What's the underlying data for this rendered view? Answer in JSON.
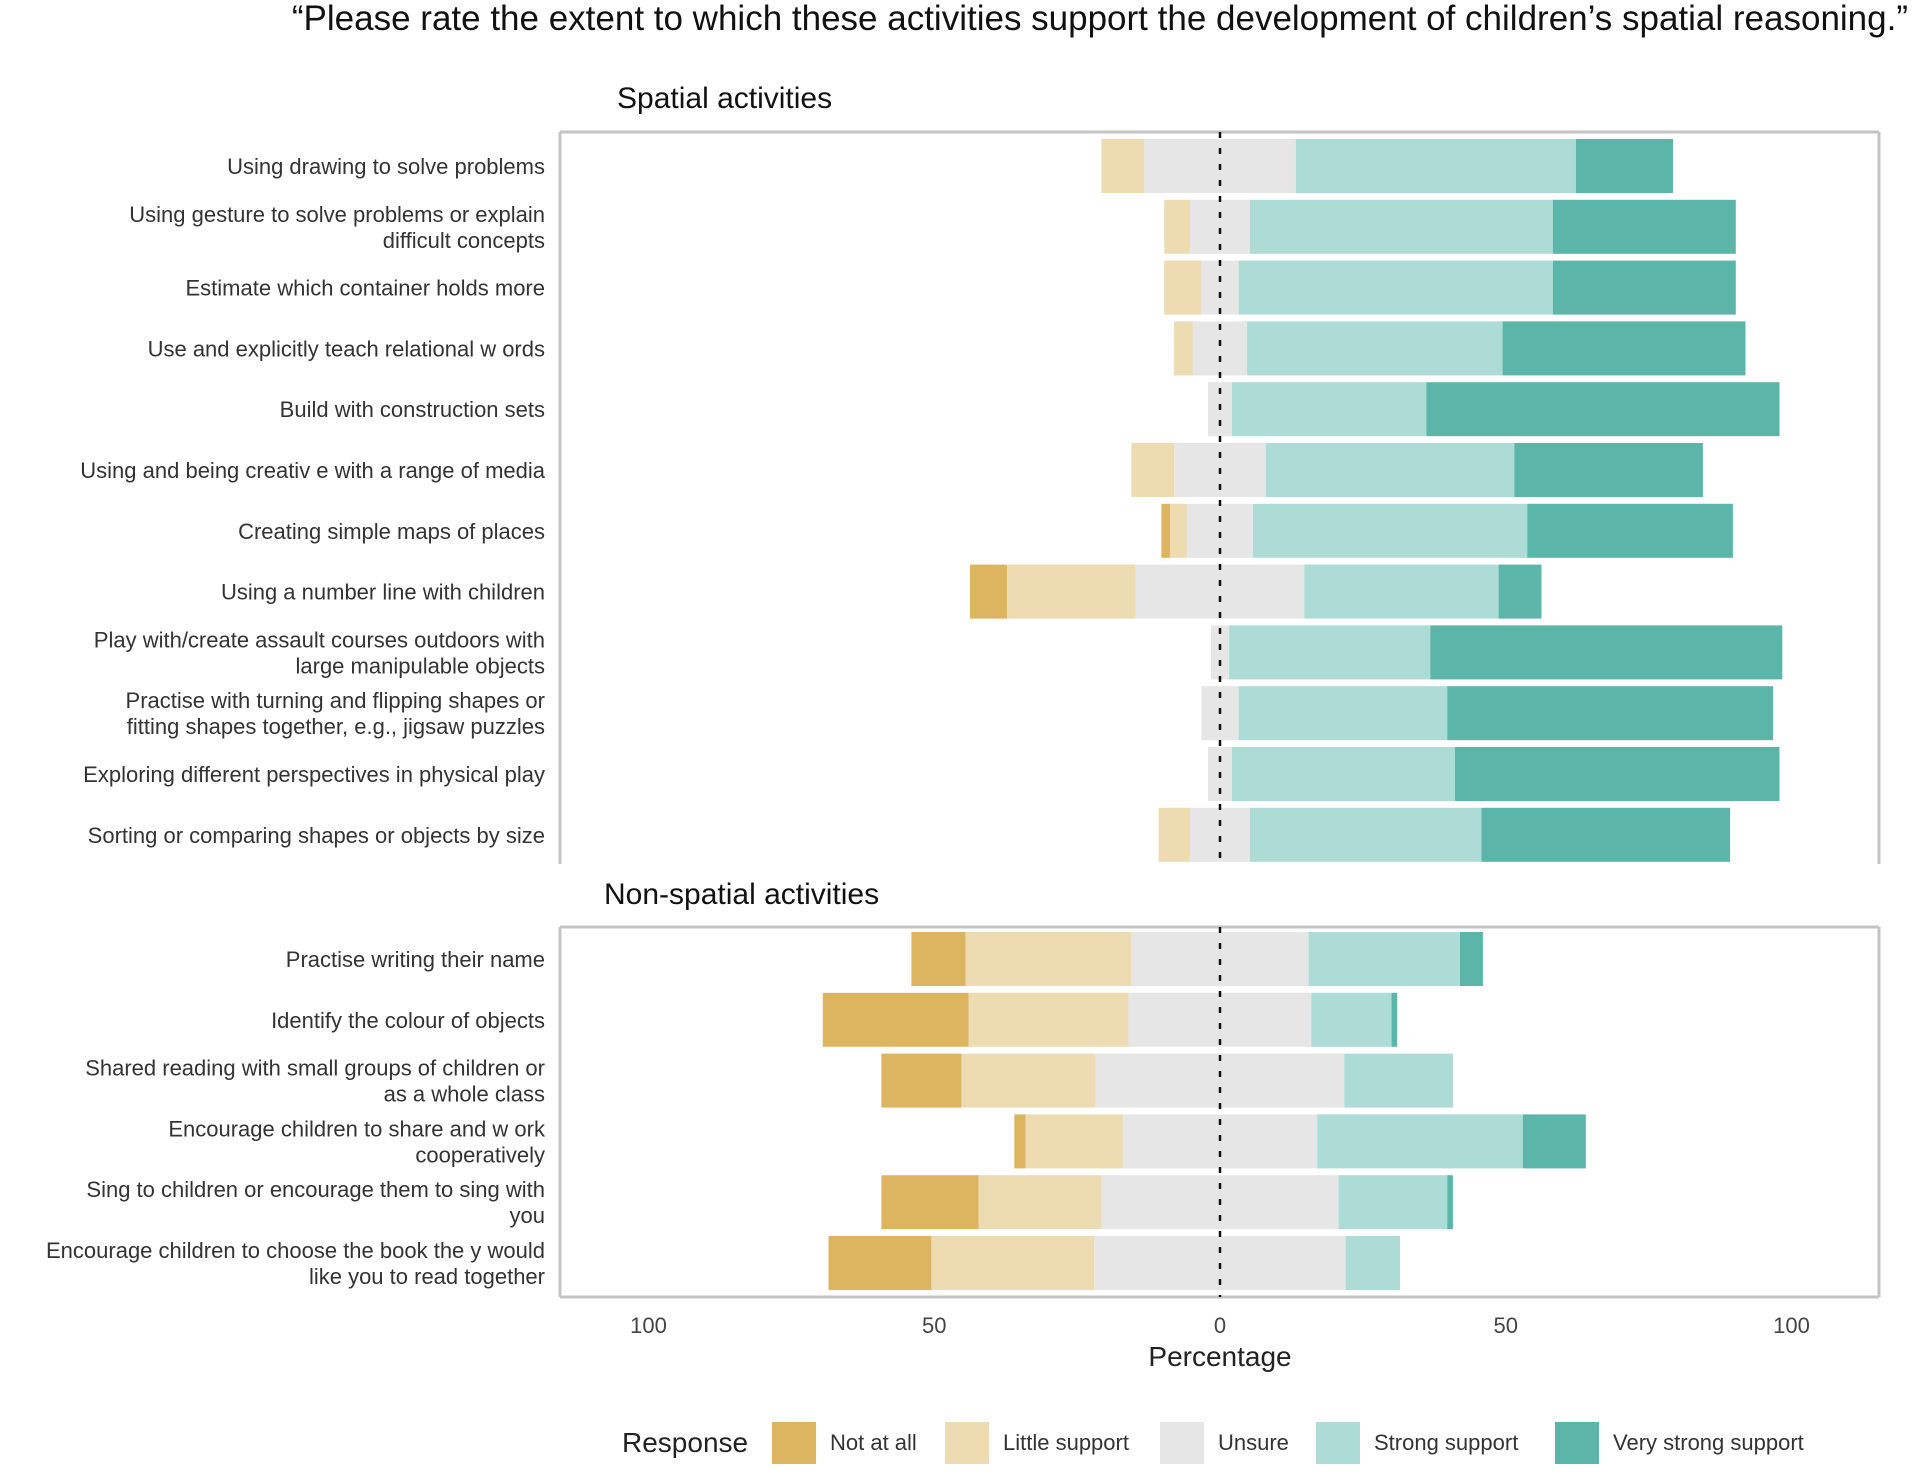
{
  "chart_data": {
    "type": "diverging-stacked-bar",
    "title": "“Please rate the extent to which these activities support the development of children’s spatial reasoning.”",
    "xlabel": "Percentage",
    "xlim": [
      -115,
      115
    ],
    "x_ticks": [
      {
        "value": -100,
        "label": "100"
      },
      {
        "value": -50,
        "label": "50"
      },
      {
        "value": 0,
        "label": "0"
      },
      {
        "value": 50,
        "label": "50"
      },
      {
        "value": 100,
        "label": "100"
      }
    ],
    "legend": {
      "title": "Response",
      "position": "bottom",
      "entries": [
        {
          "name": "Not at all",
          "color": "#DDB561"
        },
        {
          "name": "Little support",
          "color": "#EDDBB2"
        },
        {
          "name": "Unsure",
          "color": "#E6E6E6"
        },
        {
          "name": "Strong support",
          "color": "#ADDBD6"
        },
        {
          "name": "Very strong support",
          "color": "#5BB6A9"
        }
      ]
    },
    "panels": [
      {
        "title": "Spatial activities",
        "rows": [
          {
            "label": [
              "Using drawing to solve problems"
            ],
            "values": [
              0,
              7.5,
              26.5,
              49,
              17
            ]
          },
          {
            "label": [
              "Using gesture to solve problems or explain",
              "difficult concepts"
            ],
            "values": [
              0,
              4.5,
              10.5,
              53,
              32
            ]
          },
          {
            "label": [
              "Estimate which container holds more"
            ],
            "values": [
              0,
              6.5,
              6.5,
              55,
              32
            ]
          },
          {
            "label": [
              "Use and explicitly teach relational w ords"
            ],
            "values": [
              0,
              3.3,
              9.5,
              44.7,
              42.5
            ]
          },
          {
            "label": [
              "Build with construction sets"
            ],
            "values": [
              0,
              0,
              4.2,
              34,
              61.8
            ]
          },
          {
            "label": [
              "Using and being creativ e with a range of media"
            ],
            "values": [
              0,
              7.5,
              16,
              43.5,
              33
            ]
          },
          {
            "label": [
              "Creating simple maps of places"
            ],
            "values": [
              1.5,
              3,
              11.5,
              48,
              36
            ]
          },
          {
            "label": [
              "Using a number line with children"
            ],
            "values": [
              6.5,
              22.5,
              29.5,
              34,
              7.5
            ]
          },
          {
            "label": [
              "Play with/create assault courses outdoors with",
              "large manipulable objects"
            ],
            "values": [
              0,
              0,
              3.2,
              35.2,
              61.6
            ]
          },
          {
            "label": [
              "Practise with turning and flipping shapes or",
              "fitting shapes together, e.g., jigsaw puzzles"
            ],
            "values": [
              0,
              0,
              6.5,
              36.5,
              57
            ]
          },
          {
            "label": [
              "Exploring different perspectives in physical play"
            ],
            "values": [
              0,
              0,
              4.2,
              39,
              56.8
            ]
          },
          {
            "label": [
              "Sorting or comparing shapes or objects by size"
            ],
            "values": [
              0,
              5.5,
              10.5,
              40.5,
              43.5
            ]
          }
        ]
      },
      {
        "title": "Non-spatial activities",
        "rows": [
          {
            "label": [
              "Practise writing their name"
            ],
            "values": [
              9.5,
              29,
              31,
              26.5,
              4
            ]
          },
          {
            "label": [
              "Identify the colour of objects"
            ],
            "values": [
              25.5,
              28,
              32,
              14,
              1
            ]
          },
          {
            "label": [
              "Shared reading with small groups of children or",
              "as a whole class"
            ],
            "values": [
              14,
              23.5,
              43.5,
              19,
              0
            ]
          },
          {
            "label": [
              "Encourage children to share and w ork",
              "cooperatively"
            ],
            "values": [
              2,
              17,
              34,
              36,
              11
            ]
          },
          {
            "label": [
              "Sing to children or encourage them to sing with",
              "you"
            ],
            "values": [
              17,
              21.5,
              41.5,
              19,
              1
            ]
          },
          {
            "label": [
              "Encourage children to choose the book the y would",
              "like you to read together"
            ],
            "values": [
              18,
              28.5,
              44,
              9.5,
              0
            ]
          }
        ]
      }
    ]
  }
}
